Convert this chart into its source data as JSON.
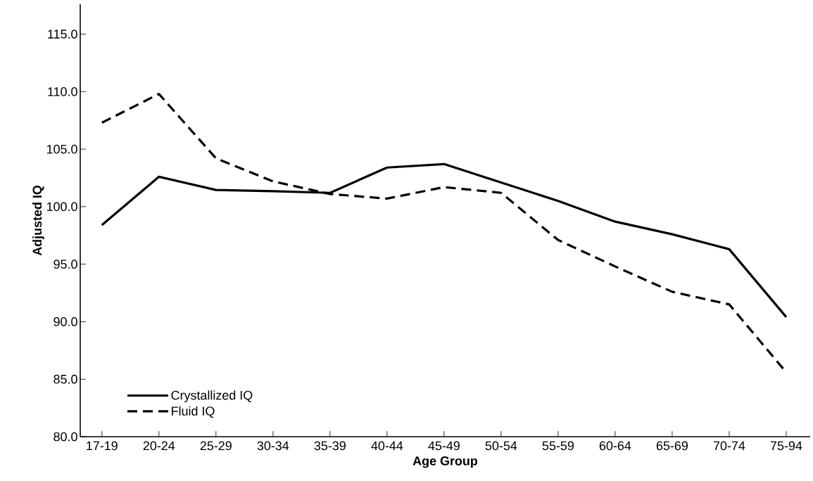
{
  "chart_data": {
    "type": "line",
    "xlabel": "Age Group",
    "ylabel": "Adjusted IQ",
    "categories": [
      "17-19",
      "20-24",
      "25-29",
      "30-34",
      "35-39",
      "40-44",
      "45-49",
      "50-54",
      "55-59",
      "60-64",
      "65-69",
      "70-74",
      "75-94"
    ],
    "series": [
      {
        "name": "Crystallized IQ",
        "color": "#000000",
        "line_style": "solid",
        "values": [
          98.4,
          102.6,
          101.45,
          101.35,
          101.2,
          103.4,
          103.7,
          102.1,
          100.5,
          98.7,
          97.6,
          96.3,
          90.4
        ]
      },
      {
        "name": "Fluid IQ",
        "color": "#000000",
        "line_style": "dashed",
        "values": [
          107.3,
          109.8,
          104.2,
          102.2,
          101.1,
          100.7,
          101.7,
          101.2,
          97.1,
          94.8,
          92.6,
          91.5,
          85.6
        ]
      }
    ],
    "ylim": [
      80,
      117.6
    ],
    "yticks": [
      {
        "value": 80,
        "label": "80.0"
      },
      {
        "value": 85,
        "label": "85.0"
      },
      {
        "value": 90,
        "label": "90.0"
      },
      {
        "value": 95,
        "label": "95.0"
      },
      {
        "value": 100,
        "label": "100.0"
      },
      {
        "value": 105,
        "label": "105.0"
      },
      {
        "value": 110,
        "label": "110.0"
      },
      {
        "value": 115,
        "label": "115.0"
      }
    ],
    "grid": false,
    "legend": "bottom left",
    "marker": "none"
  }
}
